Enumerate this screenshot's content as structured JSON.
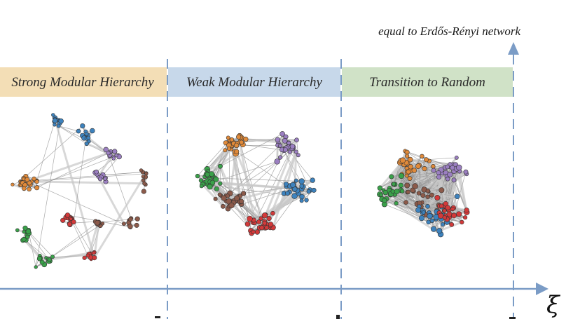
{
  "annotation": {
    "top_text": "equal to Erdős-Rényi network"
  },
  "regions": [
    {
      "label": "Strong Modular Hierarchy",
      "color": "#f3deb6"
    },
    {
      "label": "Weak Modular Hierarchy",
      "color": "#c7d8ea"
    },
    {
      "label": "Transition to Random",
      "color": "#d0e2c7"
    }
  ],
  "axis": {
    "symbol": "ξ",
    "color": "#7b9cc6"
  },
  "module_colors": [
    "#e08a3a",
    "#3d82bd",
    "#9b7fc1",
    "#8c5a4a",
    "#d23a3a",
    "#3aa14a"
  ],
  "networks": [
    {
      "name": "strong-modular-network"
    },
    {
      "name": "weak-modular-network"
    },
    {
      "name": "random-transition-network"
    }
  ]
}
